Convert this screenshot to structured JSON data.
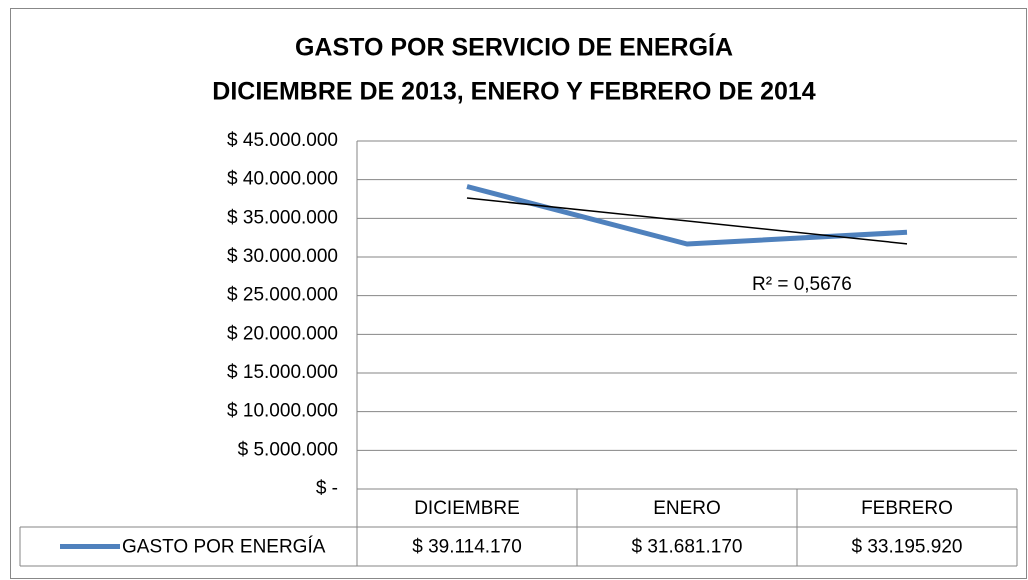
{
  "chart_data": {
    "type": "line",
    "title": [
      "GASTO POR SERVICIO DE ENERGÍA",
      "DICIEMBRE DE 2013, ENERO Y FEBRERO DE 2014"
    ],
    "categories": [
      "DICIEMBRE",
      "ENERO",
      "FEBRERO"
    ],
    "series": [
      {
        "name": "GASTO POR ENERGÍA",
        "color": "#4f81bd",
        "values": [
          39114170,
          31681170,
          33195920
        ],
        "value_labels": [
          "$ 39.114.170",
          "$ 31.681.170",
          "$ 33.195.920"
        ]
      }
    ],
    "trendline": {
      "type": "linear",
      "color": "#000000",
      "label": "R² = 0,5676"
    },
    "ylim": [
      0,
      45000000
    ],
    "yticks": [
      {
        "value": 0,
        "label": "$ -"
      },
      {
        "value": 5000000,
        "label": "$ 5.000.000"
      },
      {
        "value": 10000000,
        "label": "$ 10.000.000"
      },
      {
        "value": 15000000,
        "label": "$ 15.000.000"
      },
      {
        "value": 20000000,
        "label": "$ 20.000.000"
      },
      {
        "value": 25000000,
        "label": "$ 25.000.000"
      },
      {
        "value": 30000000,
        "label": "$ 30.000.000"
      },
      {
        "value": 35000000,
        "label": "$ 35.000.000"
      },
      {
        "value": 40000000,
        "label": "$ 40.000.000"
      },
      {
        "value": 45000000,
        "label": "$ 45.000.000"
      }
    ],
    "grid": true,
    "data_table": true
  }
}
